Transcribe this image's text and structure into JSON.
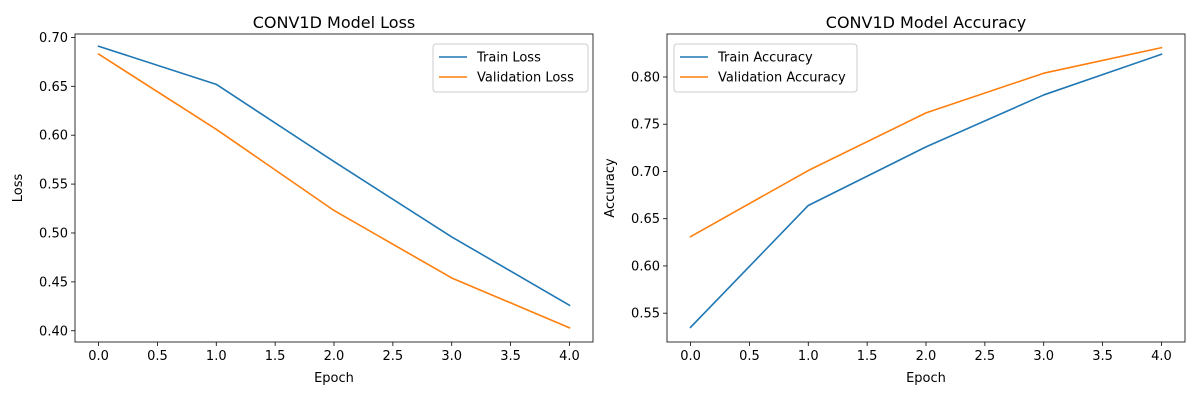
{
  "chart_data": [
    {
      "type": "line",
      "title": "CONV1D Model Loss",
      "xlabel": "Epoch",
      "ylabel": "Loss",
      "x": [
        0,
        1,
        2,
        3,
        4
      ],
      "xticks": [
        "0.0",
        "0.5",
        "1.0",
        "1.5",
        "2.0",
        "2.5",
        "3.0",
        "3.5",
        "4.0"
      ],
      "xlim": [
        -0.2,
        4.2
      ],
      "yticks": [
        "0.40",
        "0.45",
        "0.50",
        "0.55",
        "0.60",
        "0.65",
        "0.70"
      ],
      "ylim": [
        0.3885,
        0.7035
      ],
      "legend_position": "upper right",
      "series": [
        {
          "name": "Train Loss",
          "color": "#1f77b4",
          "values": [
            0.691,
            0.652,
            0.573,
            0.496,
            0.426
          ]
        },
        {
          "name": "Validation Loss",
          "color": "#ff7f0e",
          "values": [
            0.683,
            0.606,
            0.523,
            0.454,
            0.403
          ]
        }
      ]
    },
    {
      "type": "line",
      "title": "CONV1D Model Accuracy",
      "xlabel": "Epoch",
      "ylabel": "Accuracy",
      "x": [
        0,
        1,
        2,
        3,
        4
      ],
      "xticks": [
        "0.0",
        "0.5",
        "1.0",
        "1.5",
        "2.0",
        "2.5",
        "3.0",
        "3.5",
        "4.0"
      ],
      "xlim": [
        -0.2,
        4.2
      ],
      "yticks": [
        "0.55",
        "0.60",
        "0.65",
        "0.70",
        "0.75",
        "0.80"
      ],
      "ylim": [
        0.5195,
        0.8455
      ],
      "legend_position": "upper left",
      "series": [
        {
          "name": "Train Accuracy",
          "color": "#1f77b4",
          "values": [
            0.535,
            0.664,
            0.726,
            0.781,
            0.824
          ]
        },
        {
          "name": "Validation Accuracy",
          "color": "#ff7f0e",
          "values": [
            0.631,
            0.701,
            0.762,
            0.804,
            0.831
          ]
        }
      ]
    }
  ]
}
